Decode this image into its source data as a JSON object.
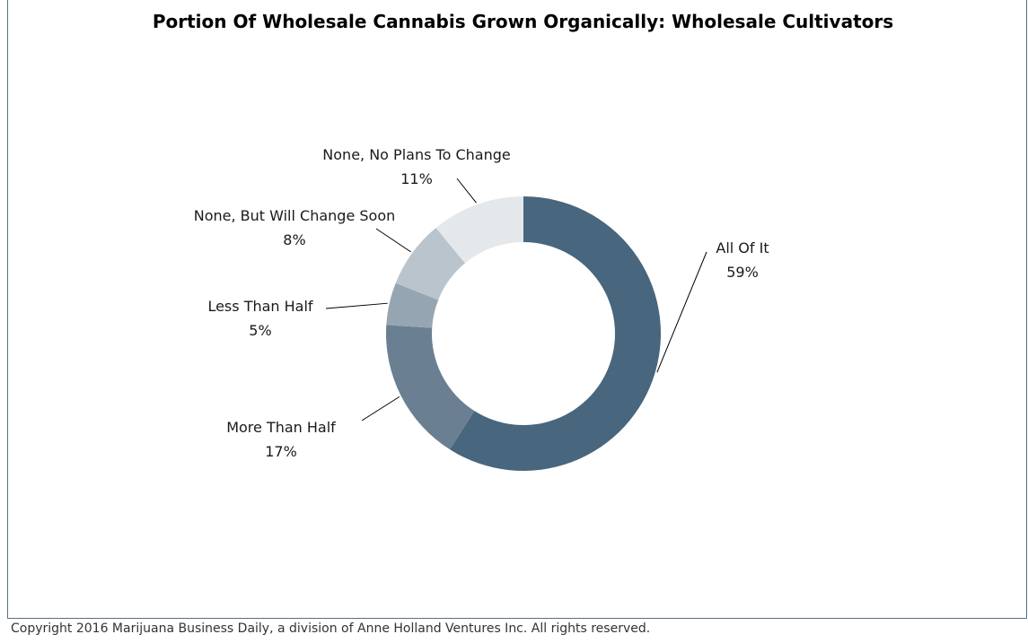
{
  "chart_data": {
    "type": "pie",
    "variant": "donut",
    "title": "Portion Of Wholesale Cannabis Grown Organically: Wholesale Cultivators",
    "slices": [
      {
        "label": "All Of It",
        "value": 59,
        "value_label": "59%",
        "color": "#48667d"
      },
      {
        "label": "More Than Half",
        "value": 17,
        "value_label": "17%",
        "color": "#6a7f92"
      },
      {
        "label": "Less Than Half",
        "value": 5,
        "value_label": "5%",
        "color": "#95a5b2"
      },
      {
        "label": "None, But Will Change Soon",
        "value": 8,
        "value_label": "8%",
        "color": "#b9c4cd"
      },
      {
        "label": "None, No Plans To Change",
        "value": 11,
        "value_label": "11%",
        "color": "#e5e8eb"
      }
    ],
    "legend": "none"
  },
  "footer": {
    "copyright": "Copyright 2016 Marijuana Business Daily, a division of Anne Holland Ventures Inc. All rights reserved."
  }
}
